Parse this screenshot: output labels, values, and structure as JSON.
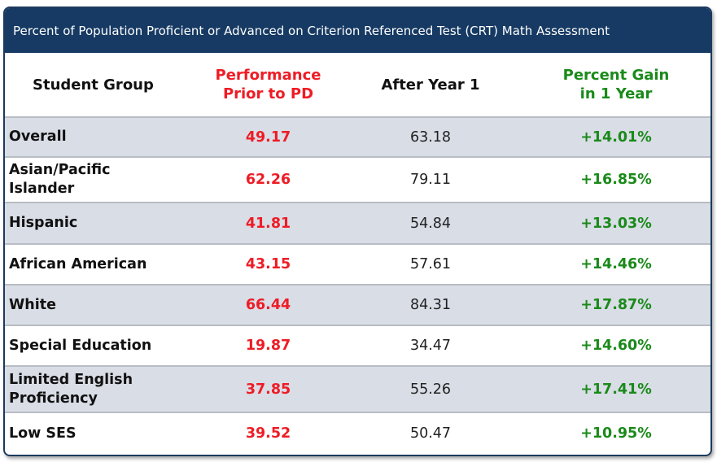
{
  "title": "Percent of Population Proficient or Advanced on Criterion Referenced Test (CRT) Math Assessment",
  "chart_data": {
    "type": "table",
    "columns": [
      "Student Group",
      "Performance Prior to PD",
      "After Year 1",
      "Percent Gain in 1 Year"
    ],
    "column_lines": [
      [
        "Student Group"
      ],
      [
        "Performance",
        "Prior to PD"
      ],
      [
        "After Year 1"
      ],
      [
        "Percent Gain",
        "in 1 Year"
      ]
    ],
    "rows": [
      {
        "group_lines": [
          "Overall"
        ],
        "prior": "49.17",
        "after": "63.18",
        "gain": "+14.01%"
      },
      {
        "group_lines": [
          "Asian/Pacific",
          "Islander"
        ],
        "prior": "62.26",
        "after": "79.11",
        "gain": "+16.85%"
      },
      {
        "group_lines": [
          "Hispanic"
        ],
        "prior": "41.81",
        "after": "54.84",
        "gain": "+13.03%"
      },
      {
        "group_lines": [
          "African American"
        ],
        "prior": "43.15",
        "after": "57.61",
        "gain": "+14.46%"
      },
      {
        "group_lines": [
          "White"
        ],
        "prior": "66.44",
        "after": "84.31",
        "gain": "+17.87%"
      },
      {
        "group_lines": [
          "Special Education"
        ],
        "prior": "19.87",
        "after": "34.47",
        "gain": "+14.60%"
      },
      {
        "group_lines": [
          "Limited English",
          "Proficiency"
        ],
        "prior": "37.85",
        "after": "55.26",
        "gain": "+17.41%"
      },
      {
        "group_lines": [
          "Low SES"
        ],
        "prior": "39.52",
        "after": "50.47",
        "gain": "+10.95%"
      }
    ]
  },
  "colors": {
    "title_bar": "#163a63",
    "prior_text": "#ee1c25",
    "gain_text": "#1a8a1a",
    "row_shade": "#d9dde6"
  }
}
